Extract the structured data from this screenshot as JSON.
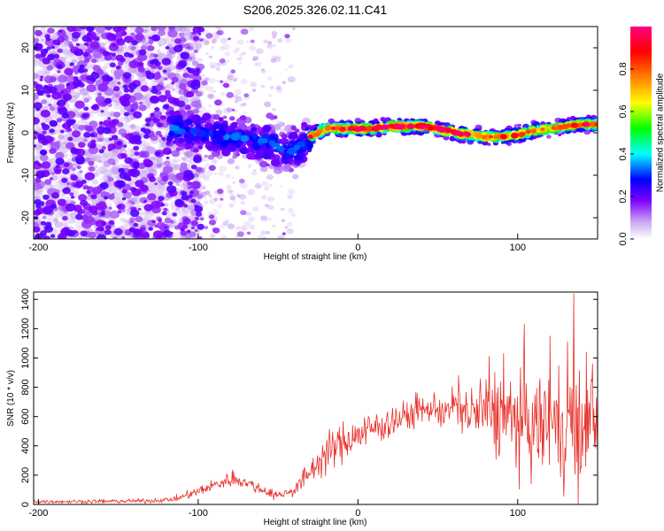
{
  "title": "S206.2025.326.02.11.C41",
  "chart_data": [
    {
      "type": "heatmap",
      "name": "spectrogram",
      "xlabel": "Height of straight line (km)",
      "ylabel": "Frequency (Hz)",
      "xlim": [
        -203,
        150
      ],
      "ylim": [
        -25,
        25
      ],
      "xticks": [
        -200,
        -100,
        0,
        100
      ],
      "yticks": [
        -20,
        -10,
        0,
        10,
        20
      ],
      "xtick_labels": [
        "-200",
        "-100",
        "0",
        "100"
      ],
      "ytick_labels": [
        "-20",
        "-10",
        "0",
        "10",
        "20"
      ],
      "ridge": {
        "x": [
          -115,
          -100,
          -80,
          -60,
          -45,
          -38,
          -30,
          -20,
          -10,
          0,
          10,
          20,
          30,
          40,
          50,
          60,
          70,
          80,
          90,
          100,
          110,
          120,
          130,
          140,
          150
        ],
        "y": [
          1,
          0,
          -1,
          -2,
          -4,
          -4,
          -1,
          1,
          1,
          1,
          1,
          1.5,
          1.5,
          1.5,
          1,
          0,
          -0.5,
          -1,
          -1,
          -0.5,
          0.5,
          1,
          1.5,
          2,
          2
        ]
      },
      "colorbar": {
        "label": "Normalized spectral amplitude",
        "range": [
          0,
          1
        ],
        "ticks": [
          0.0,
          0.2,
          0.4,
          0.6,
          0.8
        ],
        "tick_labels": [
          "0.0",
          "0.2",
          "0.4",
          "0.6",
          "0.8"
        ],
        "colors": [
          "#ffffff",
          "#c9a8f0",
          "#8000ff",
          "#0000ff",
          "#00ffff",
          "#00ff00",
          "#ffff00",
          "#ff8000",
          "#ff0000",
          "#ff0080"
        ]
      }
    },
    {
      "type": "line",
      "name": "snr",
      "xlabel": "Height of straight line (km)",
      "ylabel": "SNR (10 * v/v)",
      "xlim": [
        -203,
        150
      ],
      "ylim": [
        0,
        1450
      ],
      "xticks": [
        -200,
        -100,
        0,
        100
      ],
      "yticks": [
        0,
        200,
        400,
        600,
        800,
        1000,
        1200,
        1400
      ],
      "xtick_labels": [
        "-200",
        "-100",
        "0",
        "100"
      ],
      "ytick_labels": [
        "0",
        "200",
        "400",
        "600",
        "800",
        "1000",
        "1200",
        "1400"
      ],
      "color": "#e8312a",
      "envelope": {
        "x": [
          -203,
          -180,
          -150,
          -130,
          -115,
          -105,
          -95,
          -85,
          -78,
          -70,
          -60,
          -50,
          -40,
          -30,
          -20,
          -10,
          0,
          10,
          20,
          30,
          40,
          50,
          55,
          60,
          70,
          80,
          90,
          100,
          110,
          120,
          130,
          135,
          140,
          145,
          150
        ],
        "y": [
          20,
          20,
          22,
          25,
          35,
          70,
          110,
          150,
          180,
          150,
          100,
          60,
          100,
          220,
          350,
          420,
          480,
          520,
          560,
          600,
          640,
          660,
          620,
          680,
          620,
          640,
          600,
          560,
          520,
          560,
          520,
          600,
          450,
          560,
          600
        ]
      },
      "spread": {
        "x": [
          -203,
          -120,
          -100,
          -80,
          -60,
          -45,
          -30,
          -20,
          0,
          40,
          55,
          65,
          80,
          100,
          120,
          135,
          150
        ],
        "y": [
          12,
          14,
          30,
          50,
          35,
          25,
          80,
          120,
          120,
          90,
          110,
          140,
          260,
          300,
          320,
          360,
          320
        ]
      },
      "samples": 900,
      "peaks": [
        {
          "x": 37,
          "y": 760
        },
        {
          "x": 63,
          "y": 880
        },
        {
          "x": 82,
          "y": 1010
        },
        {
          "x": 91,
          "y": 1030
        },
        {
          "x": 104,
          "y": 1230
        },
        {
          "x": 120,
          "y": 1150
        },
        {
          "x": 131,
          "y": 1110
        },
        {
          "x": 135,
          "y": 1440
        },
        {
          "x": 143,
          "y": 1040
        },
        {
          "x": 147,
          "y": 960
        },
        {
          "x": 138,
          "y": 0
        }
      ]
    }
  ]
}
